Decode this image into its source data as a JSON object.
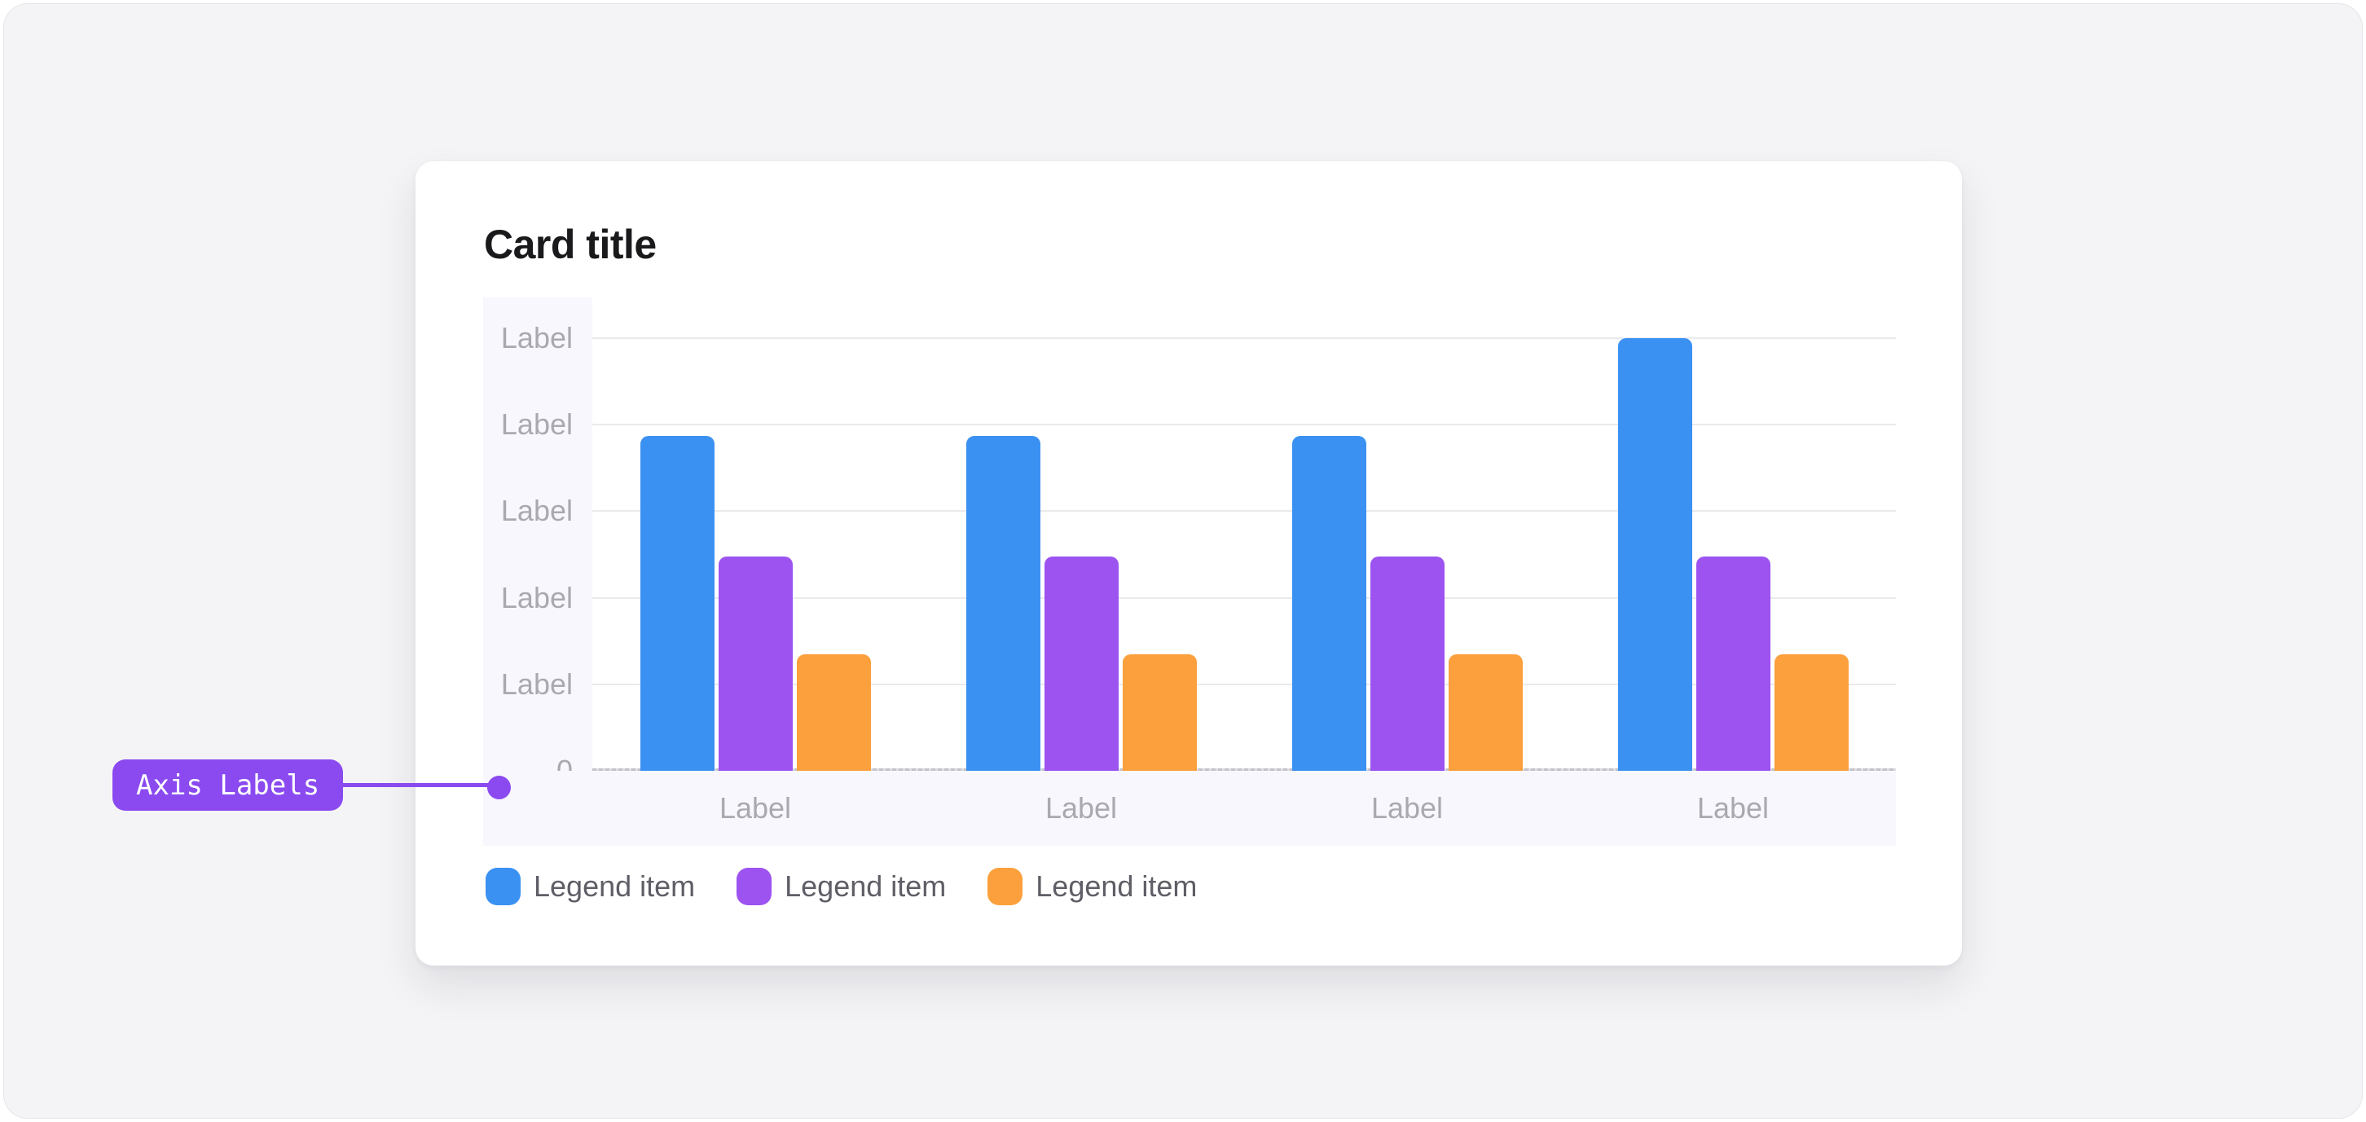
{
  "page": {
    "background": "#f4f4f6",
    "outer_background": "#ffffff"
  },
  "card": {
    "title": "Card title",
    "background": "#ffffff"
  },
  "annotation": {
    "label": "Axis Labels",
    "color": "#8a4af0",
    "text_color": "#ffffff"
  },
  "axis": {
    "strip_color": "#f8f7fd",
    "tick_color": "#a9a9af",
    "gridline_color": "#eaeaec"
  },
  "legend": {
    "items": [
      {
        "label": "Legend item",
        "color": "#3b91f2"
      },
      {
        "label": "Legend item",
        "color": "#9c53f0"
      },
      {
        "label": "Legend item",
        "color": "#fba03c"
      }
    ]
  },
  "chart_data": {
    "type": "bar",
    "title": "Card title",
    "categories": [
      "Label",
      "Label",
      "Label",
      "Label"
    ],
    "series": [
      {
        "name": "Legend item",
        "color": "#3b91f2",
        "values": [
          3.87,
          3.87,
          3.87,
          5.0
        ]
      },
      {
        "name": "Legend item",
        "color": "#9c53f0",
        "values": [
          2.48,
          2.48,
          2.48,
          2.48
        ]
      },
      {
        "name": "Legend item",
        "color": "#fba03c",
        "values": [
          1.35,
          1.35,
          1.35,
          1.35
        ]
      }
    ],
    "y_ticks": [
      {
        "value": 5,
        "label": "Label"
      },
      {
        "value": 4,
        "label": "Label"
      },
      {
        "value": 3,
        "label": "Label"
      },
      {
        "value": 2,
        "label": "Label"
      },
      {
        "value": 1,
        "label": "Label"
      },
      {
        "value": 0,
        "label": "0"
      }
    ],
    "xlabel": "",
    "ylabel": "",
    "ylim": [
      0,
      5.47
    ],
    "grid": true,
    "legend_position": "bottom"
  }
}
